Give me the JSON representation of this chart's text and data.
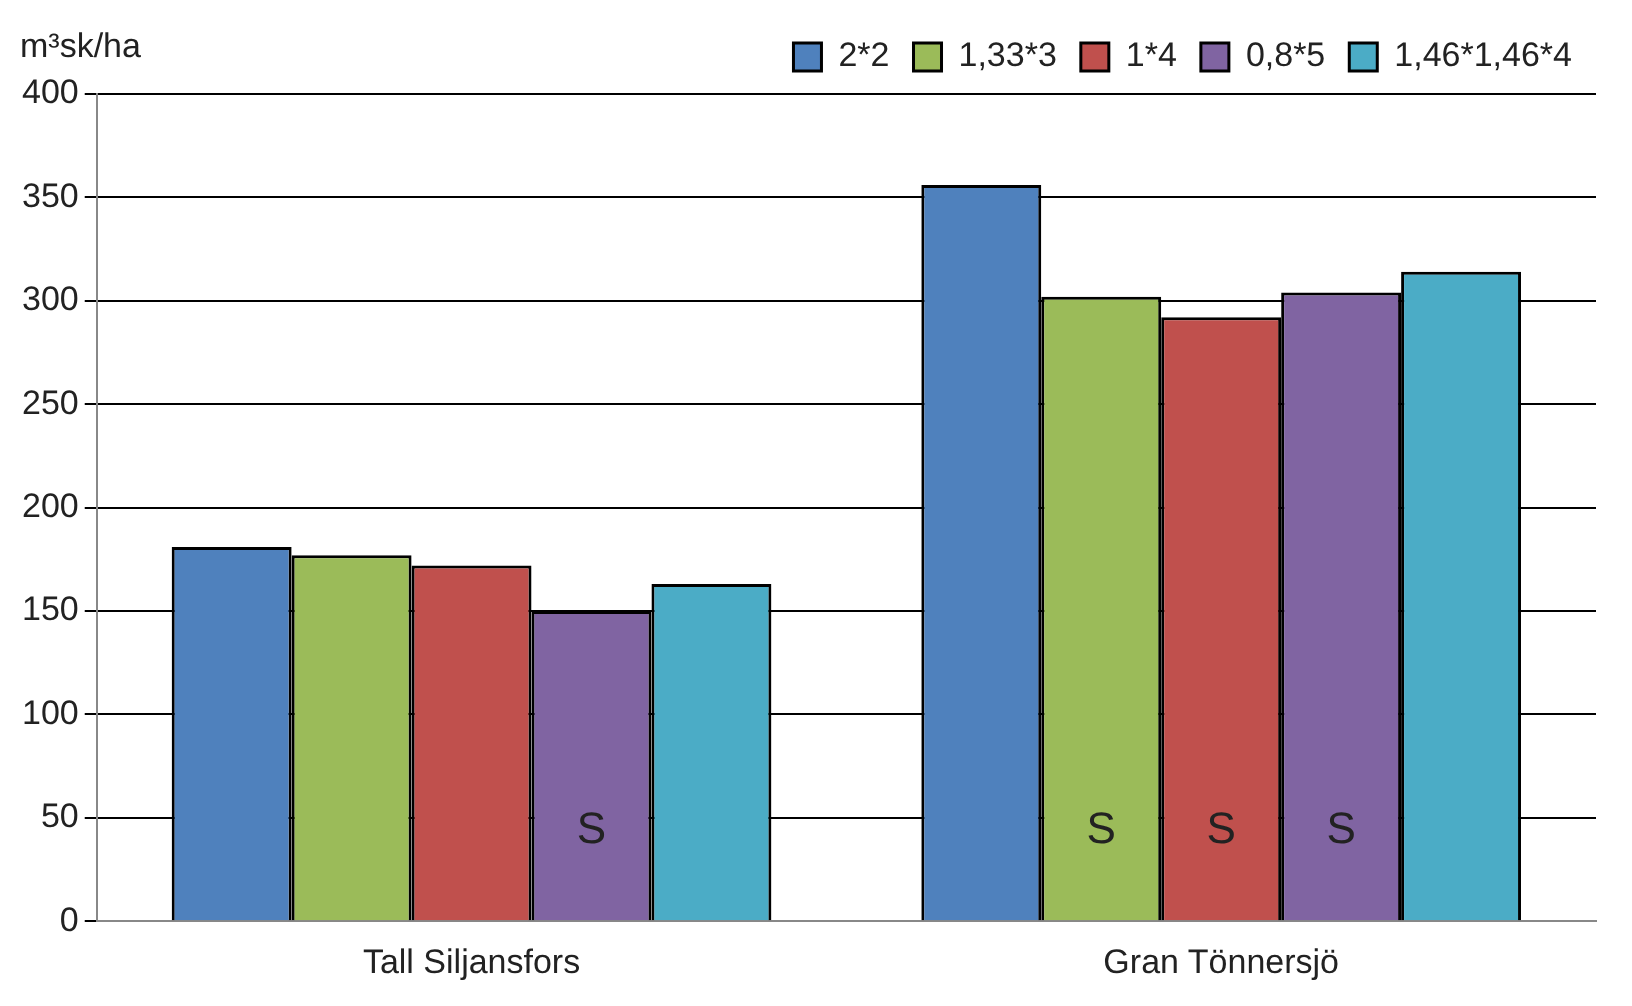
{
  "chart_data": {
    "type": "bar",
    "ylabel": "m³sk/ha",
    "categories": [
      "Tall Siljansfors",
      "Gran Tönnersjö"
    ],
    "series": [
      {
        "name": "2*2",
        "color": "#4f81bd",
        "values": [
          181,
          356
        ]
      },
      {
        "name": "1,33*3",
        "color": "#9bbb59",
        "values": [
          177,
          302
        ],
        "value_labels": [
          null,
          "S"
        ]
      },
      {
        "name": "1*4",
        "color": "#c0504d",
        "values": [
          172,
          292
        ],
        "value_labels": [
          null,
          "S"
        ]
      },
      {
        "name": "0,8*5",
        "color": "#8064a2",
        "values": [
          150,
          304
        ],
        "value_labels": [
          "S",
          "S"
        ]
      },
      {
        "name": "1,46*1,46*4",
        "color": "#4bacc6",
        "values": [
          163,
          314
        ]
      }
    ],
    "ylim": [
      0,
      400
    ],
    "yticks": [
      0,
      50,
      100,
      150,
      200,
      250,
      300,
      350,
      400
    ],
    "grid": "y",
    "legend": "top right"
  }
}
